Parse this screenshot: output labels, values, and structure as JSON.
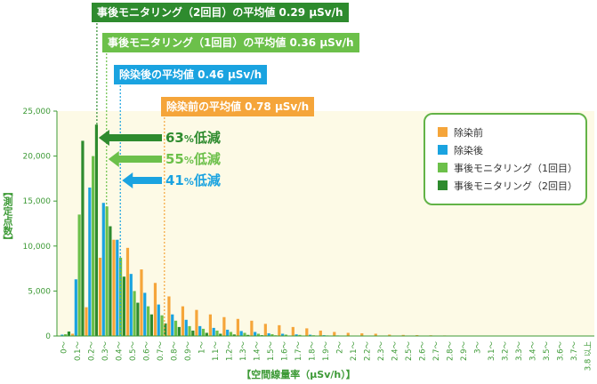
{
  "chart_data": {
    "type": "bar",
    "ylabel": "【測定点数】",
    "xlabel": "【空間線量率（μSv/h）】",
    "ylim": [
      0,
      25000
    ],
    "yticks": [
      0,
      5000,
      10000,
      15000,
      20000,
      25000
    ],
    "ytick_labels": [
      "0",
      "5,000",
      "10,000",
      "15,000",
      "20,000",
      "25,000"
    ],
    "categories": [
      "0～",
      "0.1～",
      "0.2～",
      "0.3～",
      "0.4～",
      "0.5～",
      "0.6～",
      "0.7～",
      "0.8～",
      "0.9～",
      "1～",
      "1.1～",
      "1.2～",
      "1.3～",
      "1.4～",
      "1.5～",
      "1.6～",
      "1.7～",
      "1.8～",
      "1.9～",
      "2～",
      "2.1～",
      "2.2～",
      "2.3～",
      "2.4～",
      "2.5～",
      "2.6～",
      "2.7～",
      "2.8～",
      "2.9～",
      "3～",
      "3.1～",
      "3.2～",
      "3.3～",
      "3.4～",
      "3.5～",
      "3.6～",
      "3.7～",
      "3.8 以上"
    ],
    "series": [
      {
        "name": "除染前",
        "color": "#f5a53a",
        "values": [
          50,
          250,
          3200,
          8700,
          10700,
          9800,
          7400,
          5900,
          4400,
          3300,
          2900,
          2400,
          2100,
          1900,
          1700,
          1350,
          1200,
          1000,
          850,
          600,
          450,
          350,
          300,
          250,
          150,
          120,
          100,
          80,
          60,
          50,
          40,
          30,
          30,
          20,
          20,
          20,
          10,
          10,
          10
        ]
      },
      {
        "name": "除染後",
        "color": "#1aa3e0",
        "values": [
          150,
          6300,
          16500,
          14800,
          10700,
          6900,
          4800,
          3500,
          2400,
          1800,
          1100,
          900,
          700,
          550,
          450,
          300,
          250,
          180,
          140,
          90,
          60,
          40,
          30,
          20,
          15,
          10,
          10,
          5,
          5,
          5,
          5,
          5,
          0,
          0,
          0,
          0,
          0,
          0,
          0
        ]
      },
      {
        "name": "事後モニタリング（1回目）",
        "color": "#6cc04a",
        "values": [
          200,
          13500,
          20000,
          14400,
          8700,
          5000,
          3300,
          2300,
          1700,
          1100,
          800,
          600,
          450,
          350,
          250,
          200,
          150,
          120,
          80,
          60,
          40,
          30,
          20,
          15,
          10,
          8,
          5,
          5,
          5,
          0,
          0,
          0,
          0,
          0,
          0,
          0,
          0,
          0,
          0
        ]
      },
      {
        "name": "事後モニタリング（2回目）",
        "color": "#2e8b2e",
        "values": [
          500,
          21700,
          23500,
          12200,
          6600,
          3700,
          2400,
          1400,
          1000,
          600,
          350,
          250,
          170,
          120,
          90,
          70,
          50,
          40,
          30,
          20,
          15,
          10,
          8,
          5,
          5,
          3,
          2,
          2,
          0,
          0,
          0,
          0,
          0,
          0,
          0,
          0,
          0,
          0,
          0
        ]
      }
    ],
    "averages": [
      {
        "text": "事後モニタリング（2回目）の平均値 0.29 μSv/h",
        "value": 0.29,
        "color": "#2e8b2e"
      },
      {
        "text": "事後モニタリング（1回目）の平均値 0.36 μSv/h",
        "value": 0.36,
        "color": "#6cc04a"
      },
      {
        "text": "除染後の平均値 0.46 μSv/h",
        "value": 0.46,
        "color": "#1aa3e0"
      },
      {
        "text": "除染前の平均値 0.78 μSv/h",
        "value": 0.78,
        "color": "#f5a53a"
      }
    ],
    "reductions": [
      {
        "percent": "63",
        "unit": "%",
        "text": "低減",
        "color": "#2e8b2e"
      },
      {
        "percent": "55",
        "unit": "%",
        "text": "低減",
        "color": "#6cc04a"
      },
      {
        "percent": "41",
        "unit": "%",
        "text": "低減",
        "color": "#1aa3e0"
      }
    ],
    "legend_position": "top-right",
    "colors": {
      "plot_bg": "#fdfae6",
      "axis": "#3d9a36",
      "grid": "#d9e8c9"
    }
  }
}
